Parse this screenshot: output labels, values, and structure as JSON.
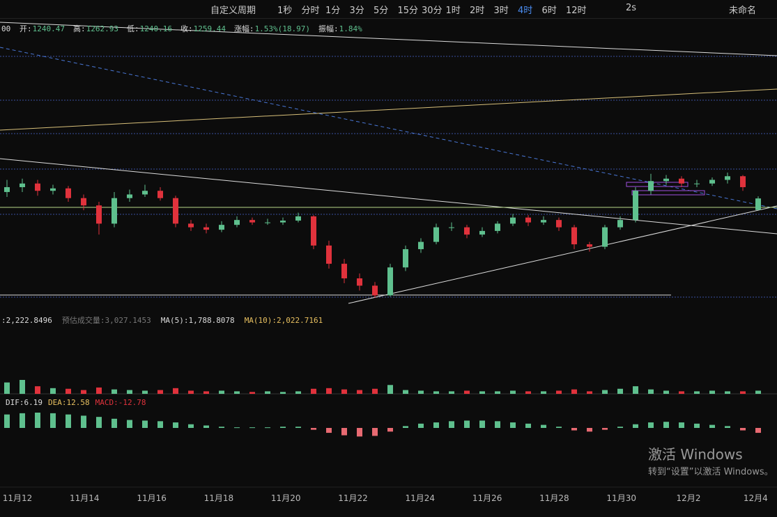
{
  "toolbar": {
    "custom": "自定义周期",
    "periods": [
      "1秒",
      "分时",
      "1分",
      "3分",
      "5分",
      "15分",
      "30分",
      "1时",
      "2时",
      "3时",
      "4时",
      "6时",
      "12时"
    ],
    "active_period": 10,
    "speed": "2s",
    "layout_name": "未命名"
  },
  "info": {
    "prefix": "00",
    "items": [
      {
        "label": "开:",
        "value": "1240.47"
      },
      {
        "label": "高:",
        "value": "1262.93"
      },
      {
        "label": "低:",
        "value": "1240.16"
      },
      {
        "label": "收:",
        "value": "1259.44"
      },
      {
        "label": "涨幅:",
        "value": "1.53%(18.97)"
      },
      {
        "label": "振幅:",
        "value": "1.84%"
      }
    ]
  },
  "candles": [
    [
      1270,
      1290,
      1262,
      1278
    ],
    [
      1278,
      1292,
      1270,
      1284
    ],
    [
      1284,
      1290,
      1264,
      1272
    ],
    [
      1272,
      1282,
      1266,
      1276
    ],
    [
      1276,
      1280,
      1254,
      1260
    ],
    [
      1260,
      1266,
      1240,
      1248
    ],
    [
      1248,
      1254,
      1200,
      1218
    ],
    [
      1218,
      1270,
      1212,
      1260
    ],
    [
      1260,
      1274,
      1254,
      1266
    ],
    [
      1266,
      1282,
      1262,
      1272
    ],
    [
      1272,
      1278,
      1256,
      1260
    ],
    [
      1260,
      1264,
      1212,
      1218
    ],
    [
      1218,
      1224,
      1206,
      1212
    ],
    [
      1212,
      1218,
      1202,
      1208
    ],
    [
      1208,
      1222,
      1204,
      1216
    ],
    [
      1216,
      1230,
      1212,
      1224
    ],
    [
      1224,
      1228,
      1216,
      1220
    ],
    [
      1220,
      1226,
      1216,
      1220
    ],
    [
      1220,
      1228,
      1216,
      1223
    ],
    [
      1223,
      1236,
      1220,
      1230
    ],
    [
      1230,
      1232,
      1176,
      1182
    ],
    [
      1182,
      1190,
      1144,
      1152
    ],
    [
      1152,
      1160,
      1120,
      1128
    ],
    [
      1128,
      1136,
      1108,
      1116
    ],
    [
      1116,
      1122,
      1096,
      1100
    ],
    [
      1100,
      1152,
      1098,
      1146
    ],
    [
      1146,
      1182,
      1140,
      1176
    ],
    [
      1176,
      1194,
      1170,
      1188
    ],
    [
      1188,
      1218,
      1184,
      1212
    ],
    [
      1212,
      1220,
      1206,
      1212
    ],
    [
      1212,
      1216,
      1194,
      1200
    ],
    [
      1200,
      1212,
      1196,
      1206
    ],
    [
      1206,
      1222,
      1202,
      1218
    ],
    [
      1218,
      1234,
      1214,
      1228
    ],
    [
      1228,
      1232,
      1214,
      1220
    ],
    [
      1220,
      1230,
      1216,
      1224
    ],
    [
      1224,
      1228,
      1206,
      1212
    ],
    [
      1212,
      1216,
      1176,
      1184
    ],
    [
      1184,
      1188,
      1172,
      1180
    ],
    [
      1180,
      1216,
      1176,
      1212
    ],
    [
      1212,
      1230,
      1208,
      1224
    ],
    [
      1224,
      1278,
      1220,
      1272
    ],
    [
      1272,
      1300,
      1266,
      1288
    ],
    [
      1288,
      1298,
      1282,
      1292
    ],
    [
      1292,
      1296,
      1278,
      1284
    ],
    [
      1284,
      1290,
      1278,
      1284
    ],
    [
      1284,
      1294,
      1280,
      1290
    ],
    [
      1290,
      1302,
      1284,
      1296
    ],
    [
      1296,
      1298,
      1272,
      1278
    ],
    [
      1240.47,
      1262.93,
      1240.16,
      1259.44
    ]
  ],
  "volume": {
    "texts": [
      ":2,222.8496",
      "预估成交量:3,027.1453",
      "MA(5):1,788.8078",
      "MA(10):2,022.7161"
    ],
    "values": [
      18,
      22,
      12,
      9,
      8,
      6,
      10,
      7,
      6,
      5,
      6,
      9,
      5,
      4,
      5,
      4,
      3,
      4,
      3,
      4,
      8,
      9,
      7,
      6,
      8,
      14,
      6,
      5,
      4,
      4,
      5,
      4,
      4,
      5,
      4,
      4,
      5,
      7,
      4,
      6,
      8,
      12,
      7,
      5,
      4,
      4,
      5,
      4,
      4,
      5
    ]
  },
  "macd": {
    "texts": [
      "DIF:6.19",
      "DEA:12.58",
      "MACD:-12.78"
    ],
    "values": [
      22,
      24,
      25,
      24,
      22,
      20,
      18,
      15,
      13,
      12,
      11,
      9,
      6,
      4,
      2,
      1,
      1,
      1,
      2,
      2,
      -3,
      -8,
      -12,
      -14,
      -13,
      -6,
      3,
      7,
      9,
      11,
      12,
      12,
      11,
      9,
      7,
      5,
      2,
      -4,
      -6,
      -3,
      2,
      6,
      9,
      10,
      9,
      7,
      5,
      3,
      -4,
      -8
    ]
  },
  "dates": [
    "11月12",
    "11月14",
    "11月16",
    "11月18",
    "11月20",
    "11月22",
    "11月24",
    "11月26",
    "11月28",
    "11月30",
    "12月2",
    "12月4"
  ],
  "watermark": {
    "title": "激活 Windows",
    "hint": "转到“设置”以激活 Windows。"
  }
}
